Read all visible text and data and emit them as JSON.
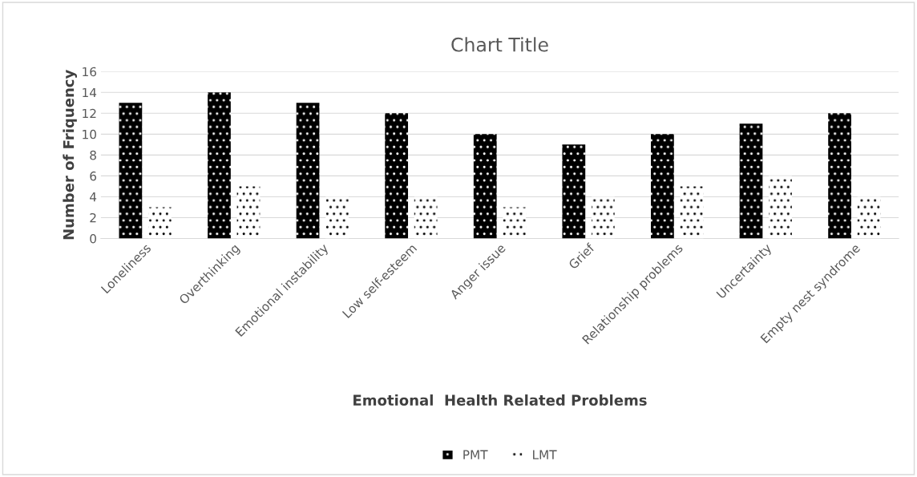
{
  "chart_data": {
    "type": "bar",
    "title": "Chart Title",
    "xlabel": "Emotional  Health Related Problems",
    "ylabel": "Number of Friquency",
    "categories": [
      "Loneliness",
      "Overthinking",
      "Emotional instability",
      "Low self-esteem",
      "Anger issue",
      "Grief",
      "Relationship problems",
      "Uncertainty",
      "Empty nest syndrome"
    ],
    "series": [
      {
        "name": "PMT",
        "color": "#000000",
        "values": [
          13,
          14,
          13,
          12,
          10,
          9,
          10,
          11,
          12
        ]
      },
      {
        "name": "LMT",
        "color": "#ffffff",
        "values": [
          3,
          5,
          4,
          4,
          3,
          4,
          5,
          6,
          4
        ]
      }
    ],
    "ylim": [
      0,
      16
    ],
    "yticks": [
      0,
      2,
      4,
      6,
      8,
      10,
      12,
      14,
      16
    ],
    "grid": "y",
    "legend": "bottom"
  }
}
